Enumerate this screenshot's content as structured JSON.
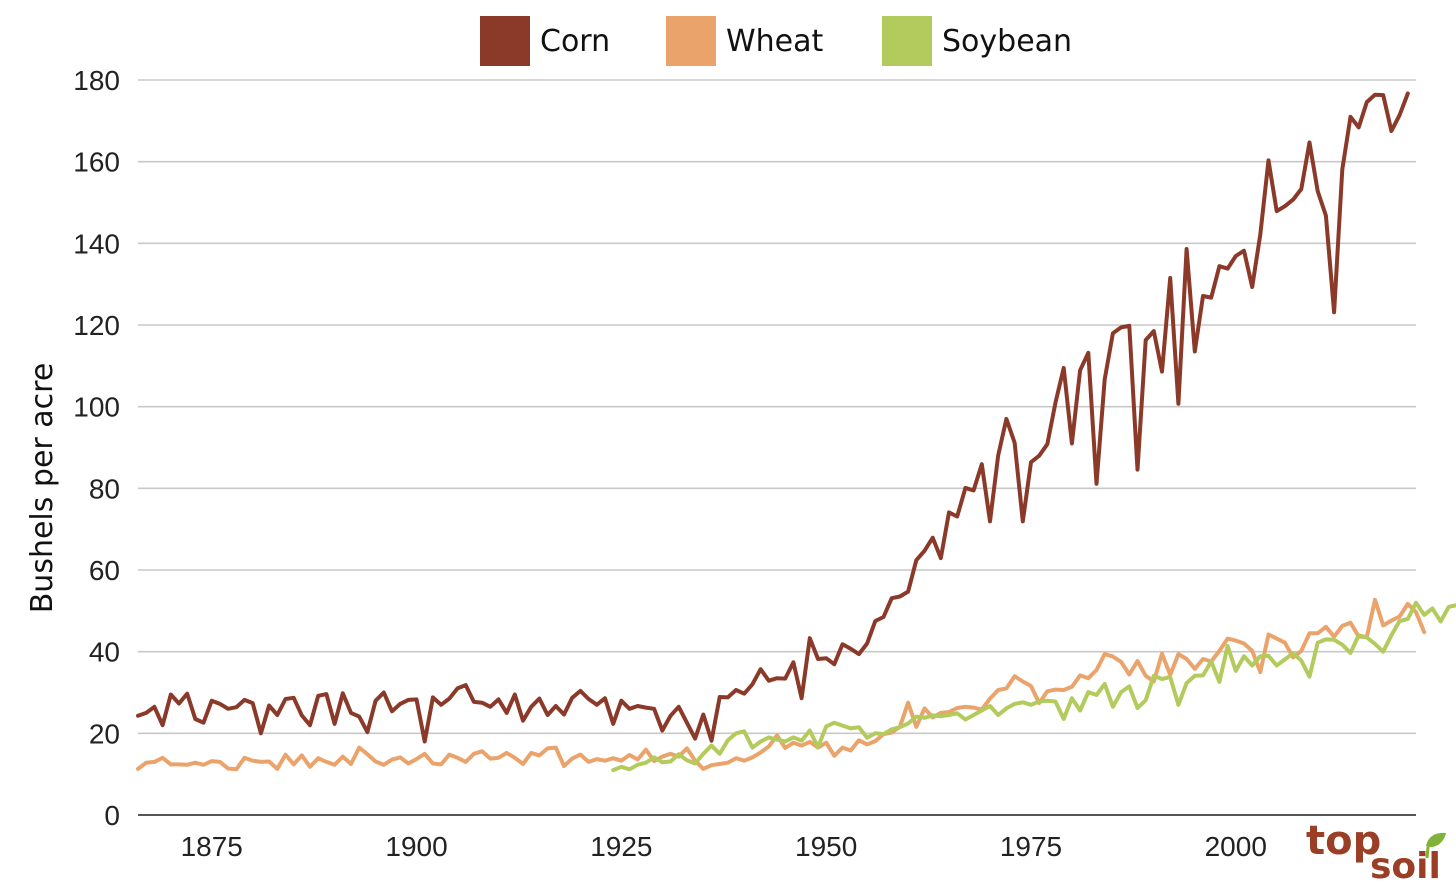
{
  "chart_data": {
    "type": "line",
    "title": "",
    "xlabel": "",
    "ylabel": "Bushels per acre",
    "xlim": [
      1866,
      2022
    ],
    "ylim": [
      0,
      180
    ],
    "xticks": [
      1875,
      1900,
      1925,
      1950,
      1975,
      2000
    ],
    "yticks": [
      0,
      20,
      40,
      60,
      80,
      100,
      120,
      140,
      160,
      180
    ],
    "grid": true,
    "legend_position": "top-center",
    "series": [
      {
        "name": "Corn",
        "color": "#8b3a2a",
        "x_start": 1866,
        "values": [
          24.3,
          25.0,
          26.5,
          22.0,
          29.5,
          27.3,
          29.7,
          23.5,
          22.6,
          28.0,
          27.2,
          26.0,
          26.4,
          28.2,
          27.4,
          20.0,
          26.8,
          24.5,
          28.4,
          28.7,
          24.4,
          22.0,
          29.2,
          29.6,
          22.3,
          29.8,
          25.0,
          24.1,
          20.3,
          28.0,
          30.0,
          25.4,
          27.2,
          28.2,
          28.3,
          18.0,
          28.8,
          27.0,
          28.5,
          31.0,
          31.8,
          27.7,
          27.5,
          26.5,
          28.3,
          25.0,
          29.5,
          23.1,
          26.5,
          28.5,
          24.5,
          26.7,
          24.6,
          28.7,
          30.4,
          28.4,
          27.0,
          28.6,
          22.3,
          28.0,
          26.0,
          26.7,
          26.3,
          26.0,
          20.7,
          24.3,
          26.5,
          22.6,
          18.7,
          24.6,
          18.2,
          28.9,
          28.8,
          30.6,
          29.7,
          32.0,
          35.7,
          32.9,
          33.5,
          33.4,
          37.4,
          28.6,
          43.3,
          38.2,
          38.4,
          36.9,
          41.8,
          40.7,
          39.4,
          42.0,
          47.5,
          48.5,
          53.1,
          53.5,
          54.7,
          62.4,
          64.7,
          67.9,
          62.9,
          74.1,
          73.1,
          80.1,
          79.5,
          85.9,
          71.9,
          88.1,
          97.0,
          91.2,
          71.9,
          86.4,
          88.0,
          90.8,
          101.0,
          109.5,
          91.0,
          108.9,
          113.2,
          81.1,
          106.7,
          118.0,
          119.4,
          119.8,
          84.6,
          116.3,
          118.5,
          108.6,
          131.5,
          100.7,
          138.6,
          113.5,
          127.1,
          126.7,
          134.4,
          133.8,
          136.9,
          138.2,
          129.3,
          142.2,
          160.3,
          147.9,
          149.1,
          150.7,
          153.3,
          164.7,
          152.8,
          146.8,
          123.1,
          158.1,
          171.0,
          168.4,
          174.6,
          176.4,
          176.3,
          167.5,
          171.4,
          176.7
        ]
      },
      {
        "name": "Wheat",
        "color": "#eba36c",
        "x_start": 1866,
        "values": [
          11.3,
          12.8,
          13.0,
          14.0,
          12.4,
          12.4,
          12.3,
          12.8,
          12.3,
          13.2,
          13.0,
          11.4,
          11.2,
          14.0,
          13.3,
          13.0,
          13.1,
          11.3,
          14.8,
          12.4,
          14.6,
          11.8,
          13.9,
          13.0,
          12.3,
          14.3,
          12.5,
          16.5,
          14.9,
          13.1,
          12.3,
          13.6,
          14.1,
          12.6,
          13.7,
          15.0,
          12.6,
          12.4,
          14.8,
          14.0,
          13.0,
          15.0,
          15.6,
          13.8,
          14.0,
          15.2,
          14.0,
          12.5,
          15.2,
          14.6,
          16.3,
          16.5,
          12.0,
          13.8,
          14.8,
          13.0,
          13.7,
          13.3,
          13.9,
          13.3,
          14.7,
          13.6,
          16.0,
          13.2,
          14.3,
          15.0,
          14.3,
          16.3,
          13.3,
          11.3,
          12.2,
          12.5,
          12.8,
          13.9,
          13.3,
          14.1,
          15.3,
          16.8,
          19.5,
          16.4,
          17.7,
          17.0,
          17.9,
          16.5,
          17.7,
          14.5,
          16.5,
          15.8,
          18.3,
          17.3,
          18.1,
          19.8,
          20.2,
          21.6,
          27.5,
          21.6,
          26.1,
          23.9,
          25.0,
          25.2,
          26.2,
          26.5,
          26.3,
          25.8,
          28.5,
          30.6,
          31.0,
          34.0,
          32.7,
          31.6,
          27.4,
          30.3,
          30.7,
          30.6,
          31.4,
          34.2,
          33.5,
          35.5,
          39.4,
          38.8,
          37.5,
          34.4,
          37.7,
          34.1,
          32.7,
          39.5,
          34.3,
          39.4,
          38.2,
          35.8,
          38.2,
          37.6,
          40.2,
          43.2,
          42.7,
          42.0,
          40.2,
          35.0,
          44.2,
          43.2,
          42.2,
          38.6,
          40.2,
          44.5,
          44.5,
          46.1,
          43.7,
          46.3,
          47.1,
          43.7,
          43.6,
          52.7,
          46.4,
          47.6,
          48.6,
          51.7,
          49.7,
          44.8
        ]
      },
      {
        "name": "Soybean",
        "color": "#b2cb5c",
        "x_start": 1924,
        "values": [
          11.0,
          11.8,
          11.2,
          12.3,
          12.8,
          14.1,
          12.9,
          13.1,
          14.9,
          13.4,
          12.6,
          15.0,
          17.0,
          15.0,
          18.3,
          20.0,
          20.5,
          16.5,
          18.0,
          19.0,
          18.5,
          18.0,
          19.0,
          18.2,
          20.7,
          16.6,
          21.7,
          22.6,
          21.9,
          21.2,
          21.5,
          18.9,
          20.0,
          19.8,
          21.0,
          21.5,
          22.4,
          24.1,
          23.8,
          24.4,
          24.2,
          24.5,
          24.9,
          23.4,
          24.5,
          25.6,
          26.7,
          24.5,
          26.1,
          27.2,
          27.6,
          27.0,
          27.8,
          28.0,
          27.8,
          23.5,
          28.6,
          25.6,
          30.1,
          29.4,
          32.1,
          26.5,
          30.1,
          31.5,
          26.2,
          28.1,
          34.1,
          33.3,
          33.8,
          27.0,
          32.3,
          34.1,
          34.2,
          37.6,
          32.6,
          41.4,
          35.3,
          38.9,
          36.6,
          38.9,
          39.0,
          36.6,
          38.1,
          39.6,
          37.8,
          33.9,
          42.2,
          43.0,
          42.9,
          41.7,
          39.7,
          44.0,
          43.5,
          41.9,
          40.0,
          44.0,
          47.5,
          48.0,
          52.0,
          49.0,
          50.6,
          47.4,
          51.0,
          51.4
        ]
      }
    ]
  },
  "logo": {
    "text_top": "top",
    "text_bottom": "soil"
  }
}
